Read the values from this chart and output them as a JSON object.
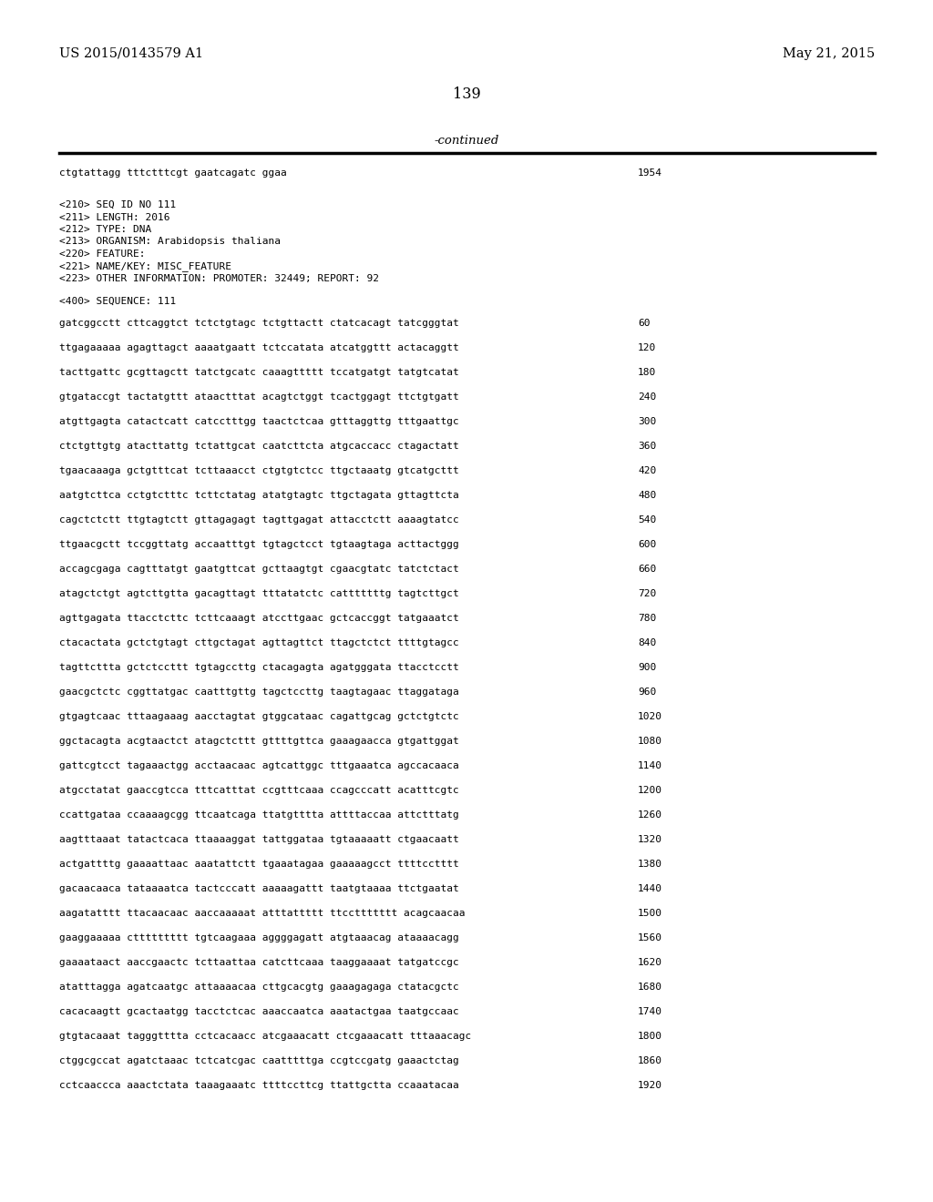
{
  "header_left": "US 2015/0143579 A1",
  "header_right": "May 21, 2015",
  "page_number": "139",
  "continued_text": "-continued",
  "background_color": "#ffffff",
  "text_color": "#000000",
  "first_line_text": "ctgtattagg tttctttcgt gaatcagatc ggaa",
  "first_line_num": "1954",
  "meta_lines": [
    "<210> SEQ ID NO 111",
    "<211> LENGTH: 2016",
    "<212> TYPE: DNA",
    "<213> ORGANISM: Arabidopsis thaliana",
    "<220> FEATURE:",
    "<221> NAME/KEY: MISC_FEATURE",
    "<223> OTHER INFORMATION: PROMOTER: 32449; REPORT: 92"
  ],
  "seq_header": "<400> SEQUENCE: 111",
  "seq_lines": [
    [
      "gatcggcctt cttcaggtct tctctgtagc tctgttactt ctatcacagt tatcgggtat",
      "60"
    ],
    [
      "ttgagaaaaa agagttagct aaaatgaatt tctccatata atcatggttt actacaggtt",
      "120"
    ],
    [
      "tacttgattc gcgttagctt tatctgcatc caaagttttt tccatgatgt tatgtcatat",
      "180"
    ],
    [
      "gtgataccgt tactatgttt ataactttat acagtctggt tcactggagt ttctgtgatt",
      "240"
    ],
    [
      "atgttgagta catactcatt catcctttgg taactctcaa gtttaggttg tttgaattgc",
      "300"
    ],
    [
      "ctctgttgtg atacttattg tctattgcat caatcttcta atgcaccacc ctagactatt",
      "360"
    ],
    [
      "tgaacaaaga gctgtttcat tcttaaacct ctgtgtctcc ttgctaaatg gtcatgcttt",
      "420"
    ],
    [
      "aatgtcttca cctgtctttc tcttctatag atatgtagtc ttgctagata gttagttcta",
      "480"
    ],
    [
      "cagctctctt ttgtagtctt gttagagagt tagttgagat attacctctt aaaagtatcc",
      "540"
    ],
    [
      "ttgaacgctt tccggttatg accaatttgt tgtagctcct tgtaagtaga acttactggg",
      "600"
    ],
    [
      "accagcgaga cagtttatgt gaatgttcat gcttaagtgt cgaacgtatc tatctctact",
      "660"
    ],
    [
      "atagctctgt agtcttgtta gacagttagt tttatatctc catttttttg tagtcttgct",
      "720"
    ],
    [
      "agttgagata ttacctcttc tcttcaaagt atccttgaac gctcaccggt tatgaaatct",
      "780"
    ],
    [
      "ctacactata gctctgtagt cttgctagat agttagttct ttagctctct ttttgtagcc",
      "840"
    ],
    [
      "tagttcttta gctctccttt tgtagccttg ctacagagta agatgggata ttacctcctt",
      "900"
    ],
    [
      "gaacgctctc cggttatgac caatttgttg tagctccttg taagtagaac ttaggataga",
      "960"
    ],
    [
      "gtgagtcaac tttaagaaag aacctagtat gtggcataac cagattgcag gctctgtctc",
      "1020"
    ],
    [
      "ggctacagta acgtaactct atagctcttt gttttgttca gaaagaacca gtgattggat",
      "1080"
    ],
    [
      "gattcgtcct tagaaactgg acctaacaac agtcattggc tttgaaatca agccacaaca",
      "1140"
    ],
    [
      "atgcctatat gaaccgtcca tttcatttat ccgtttcaaa ccagcccatt acatttcgtc",
      "1200"
    ],
    [
      "ccattgataa ccaaaagcgg ttcaatcaga ttatgtttta attttaccaa attctttatg",
      "1260"
    ],
    [
      "aagtttaaat tatactcaca ttaaaaggat tattggataa tgtaaaaatt ctgaacaatt",
      "1320"
    ],
    [
      "actgattttg gaaaattaac aaatattctt tgaaatagaa gaaaaagcct ttttcctttt",
      "1380"
    ],
    [
      "gacaacaaca tataaaatca tactcccatt aaaaagattt taatgtaaaa ttctgaatat",
      "1440"
    ],
    [
      "aagatatttt ttacaacaac aaccaaaaat atttattttt ttccttttttt acagcaacaa",
      "1500"
    ],
    [
      "gaaggaaaaa cttttttttt tgtcaagaaa aggggagatt atgtaaacag ataaaacagg",
      "1560"
    ],
    [
      "gaaaataact aaccgaactc tcttaattaa catcttcaaa taaggaaaat tatgatccgc",
      "1620"
    ],
    [
      "atatttagga agatcaatgc attaaaacaa cttgcacgtg gaaagagaga ctatacgctc",
      "1680"
    ],
    [
      "cacacaagtt gcactaatgg tacctctcac aaaccaatca aaatactgaa taatgccaac",
      "1740"
    ],
    [
      "gtgtacaaat tagggtttta cctcacaacc atcgaaacatt ctcgaaacatt tttaaacagc",
      "1800"
    ],
    [
      "ctggcgccat agatctaaac tctcatcgac caatttttga ccgtccgatg gaaactctag",
      "1860"
    ],
    [
      "cctcaaccca aaactctata taaagaaatc ttttccttcg ttattgctta ccaaatacaa",
      "1920"
    ]
  ]
}
